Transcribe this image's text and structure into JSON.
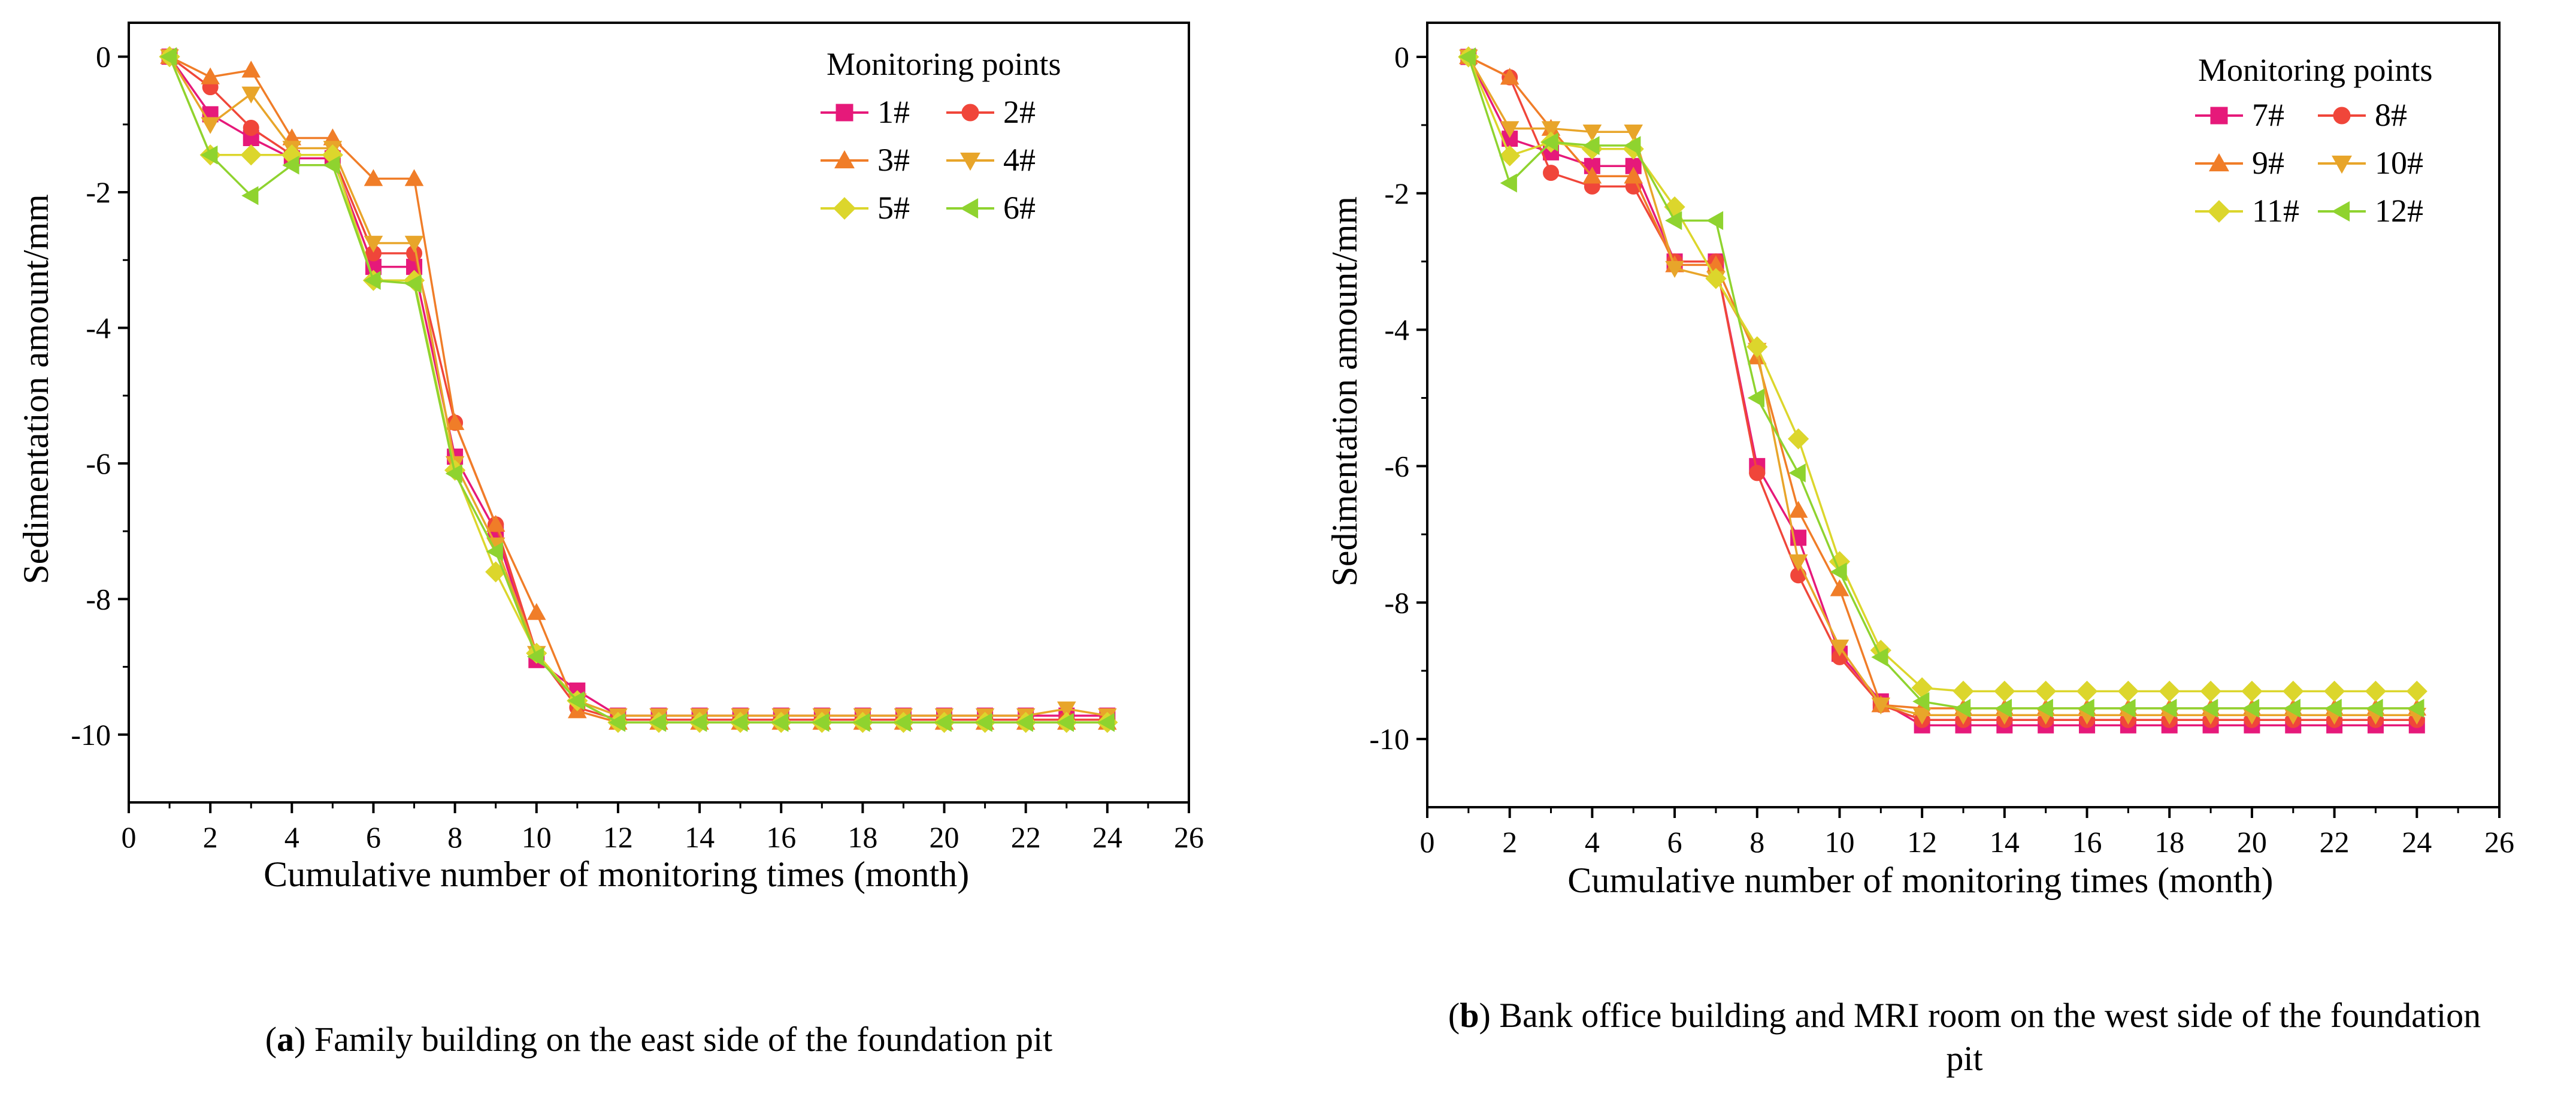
{
  "chart_data": [
    {
      "type": "line",
      "panel": "a",
      "caption_letter": "a",
      "caption_text": ") Family building on the east side of the foundation pit",
      "xlabel": "Cumulative number of monitoring times (month)",
      "ylabel": "Sedimentation amount/mm",
      "xlim": [
        0,
        26
      ],
      "ylim": [
        -11,
        0.5
      ],
      "xticks": [
        0,
        2,
        4,
        6,
        8,
        10,
        12,
        14,
        16,
        18,
        20,
        22,
        24,
        26
      ],
      "yticks": [
        0,
        -2,
        -4,
        -6,
        -8,
        -10
      ],
      "legend_title": "Monitoring points",
      "legend_position": "top-right",
      "x": [
        1,
        2,
        3,
        4,
        5,
        6,
        7,
        8,
        9,
        10,
        11,
        12,
        13,
        14,
        15,
        16,
        17,
        18,
        19,
        20,
        21,
        22,
        23,
        24
      ],
      "series": [
        {
          "name": "1#",
          "color": "#e6197a",
          "marker": "square",
          "values": [
            0,
            -0.85,
            -1.2,
            -1.5,
            -1.5,
            -3.1,
            -3.1,
            -5.9,
            -7.0,
            -8.9,
            -9.35,
            -9.72,
            -9.72,
            -9.72,
            -9.72,
            -9.72,
            -9.72,
            -9.72,
            -9.72,
            -9.72,
            -9.72,
            -9.72,
            -9.72,
            -9.72
          ]
        },
        {
          "name": "2#",
          "color": "#f0463a",
          "marker": "circle",
          "values": [
            0,
            -0.45,
            -1.05,
            -1.45,
            -1.45,
            -2.9,
            -2.9,
            -5.4,
            -6.9,
            -8.8,
            -9.6,
            -9.78,
            -9.78,
            -9.78,
            -9.78,
            -9.78,
            -9.78,
            -9.78,
            -9.78,
            -9.78,
            -9.78,
            -9.78,
            -9.78,
            -9.78
          ]
        },
        {
          "name": "3#",
          "color": "#f07d28",
          "marker": "triangle-up",
          "values": [
            0,
            -0.3,
            -0.2,
            -1.2,
            -1.2,
            -1.8,
            -1.8,
            -5.4,
            -6.9,
            -8.2,
            -9.65,
            -9.82,
            -9.82,
            -9.82,
            -9.82,
            -9.82,
            -9.82,
            -9.82,
            -9.82,
            -9.82,
            -9.82,
            -9.82,
            -9.82,
            -9.82
          ]
        },
        {
          "name": "4#",
          "color": "#e8a52a",
          "marker": "triangle-down",
          "values": [
            0,
            -1.0,
            -0.55,
            -1.35,
            -1.35,
            -2.75,
            -2.75,
            -6.0,
            -7.2,
            -8.8,
            -9.5,
            -9.72,
            -9.72,
            -9.72,
            -9.72,
            -9.72,
            -9.72,
            -9.72,
            -9.72,
            -9.72,
            -9.72,
            -9.72,
            -9.62,
            -9.72
          ]
        },
        {
          "name": "5#",
          "color": "#dcd62c",
          "marker": "diamond",
          "values": [
            0,
            -1.45,
            -1.45,
            -1.45,
            -1.45,
            -3.3,
            -3.3,
            -6.1,
            -7.6,
            -8.8,
            -9.5,
            -9.82,
            -9.82,
            -9.82,
            -9.82,
            -9.82,
            -9.82,
            -9.82,
            -9.82,
            -9.82,
            -9.82,
            -9.82,
            -9.82,
            -9.82
          ]
        },
        {
          "name": "6#",
          "color": "#8fd32f",
          "marker": "triangle-left",
          "values": [
            0,
            -1.45,
            -2.05,
            -1.6,
            -1.6,
            -3.3,
            -3.35,
            -6.15,
            -7.3,
            -8.85,
            -9.5,
            -9.82,
            -9.82,
            -9.82,
            -9.82,
            -9.82,
            -9.82,
            -9.82,
            -9.82,
            -9.82,
            -9.82,
            -9.82,
            -9.82,
            -9.82
          ]
        }
      ]
    },
    {
      "type": "line",
      "panel": "b",
      "caption_letter": "b",
      "caption_text": ") Bank office building and MRI room on the west side of the foundation",
      "caption_text_line2": "pit",
      "xlabel": "Cumulative number of monitoring times (month)",
      "ylabel": "Sedimentation amount/mm",
      "xlim": [
        0,
        26
      ],
      "ylim": [
        -11,
        0.5
      ],
      "xticks": [
        0,
        2,
        4,
        6,
        8,
        10,
        12,
        14,
        16,
        18,
        20,
        22,
        24,
        26
      ],
      "yticks": [
        0,
        -2,
        -4,
        -6,
        -8,
        -10
      ],
      "legend_title": "Monitoring points",
      "legend_position": "top-right",
      "x": [
        1,
        2,
        3,
        4,
        5,
        6,
        7,
        8,
        9,
        10,
        11,
        12,
        13,
        14,
        15,
        16,
        17,
        18,
        19,
        20,
        21,
        22,
        23,
        24
      ],
      "series": [
        {
          "name": "7#",
          "color": "#e6197a",
          "marker": "square",
          "values": [
            0,
            -1.2,
            -1.4,
            -1.6,
            -1.6,
            -3.0,
            -3.0,
            -6.0,
            -7.05,
            -8.75,
            -9.45,
            -9.8,
            -9.8,
            -9.8,
            -9.8,
            -9.8,
            -9.8,
            -9.8,
            -9.8,
            -9.8,
            -9.8,
            -9.8,
            -9.8,
            -9.8
          ]
        },
        {
          "name": "8#",
          "color": "#f0463a",
          "marker": "circle",
          "values": [
            0,
            -0.3,
            -1.7,
            -1.9,
            -1.9,
            -3.0,
            -3.0,
            -6.1,
            -7.6,
            -8.8,
            -9.5,
            -9.72,
            -9.72,
            -9.72,
            -9.72,
            -9.72,
            -9.72,
            -9.72,
            -9.72,
            -9.72,
            -9.72,
            -9.72,
            -9.72,
            -9.72
          ]
        },
        {
          "name": "9#",
          "color": "#f07d28",
          "marker": "triangle-up",
          "values": [
            0,
            -0.3,
            -1.05,
            -1.75,
            -1.75,
            -3.05,
            -3.05,
            -4.4,
            -6.65,
            -7.8,
            -9.5,
            -9.55,
            -9.55,
            -9.55,
            -9.55,
            -9.55,
            -9.55,
            -9.55,
            -9.55,
            -9.55,
            -9.55,
            -9.55,
            -9.55,
            -9.55
          ]
        },
        {
          "name": "10#",
          "color": "#e8a52a",
          "marker": "triangle-down",
          "values": [
            0,
            -1.05,
            -1.05,
            -1.1,
            -1.1,
            -3.1,
            -3.25,
            -4.3,
            -7.4,
            -8.65,
            -9.5,
            -9.65,
            -9.65,
            -9.65,
            -9.65,
            -9.65,
            -9.65,
            -9.65,
            -9.65,
            -9.65,
            -9.65,
            -9.65,
            -9.65,
            -9.65
          ]
        },
        {
          "name": "11#",
          "color": "#dcd62c",
          "marker": "diamond",
          "values": [
            0,
            -1.45,
            -1.25,
            -1.35,
            -1.35,
            -2.2,
            -3.25,
            -4.25,
            -5.6,
            -7.4,
            -8.7,
            -9.25,
            -9.3,
            -9.3,
            -9.3,
            -9.3,
            -9.3,
            -9.3,
            -9.3,
            -9.3,
            -9.3,
            -9.3,
            -9.3,
            -9.3
          ]
        },
        {
          "name": "12#",
          "color": "#8fd32f",
          "marker": "triangle-left",
          "values": [
            0,
            -1.85,
            -1.25,
            -1.3,
            -1.3,
            -2.4,
            -2.4,
            -5.0,
            -6.1,
            -7.55,
            -8.8,
            -9.45,
            -9.55,
            -9.55,
            -9.55,
            -9.55,
            -9.55,
            -9.55,
            -9.55,
            -9.55,
            -9.55,
            -9.55,
            -9.55,
            -9.55
          ]
        }
      ]
    }
  ]
}
